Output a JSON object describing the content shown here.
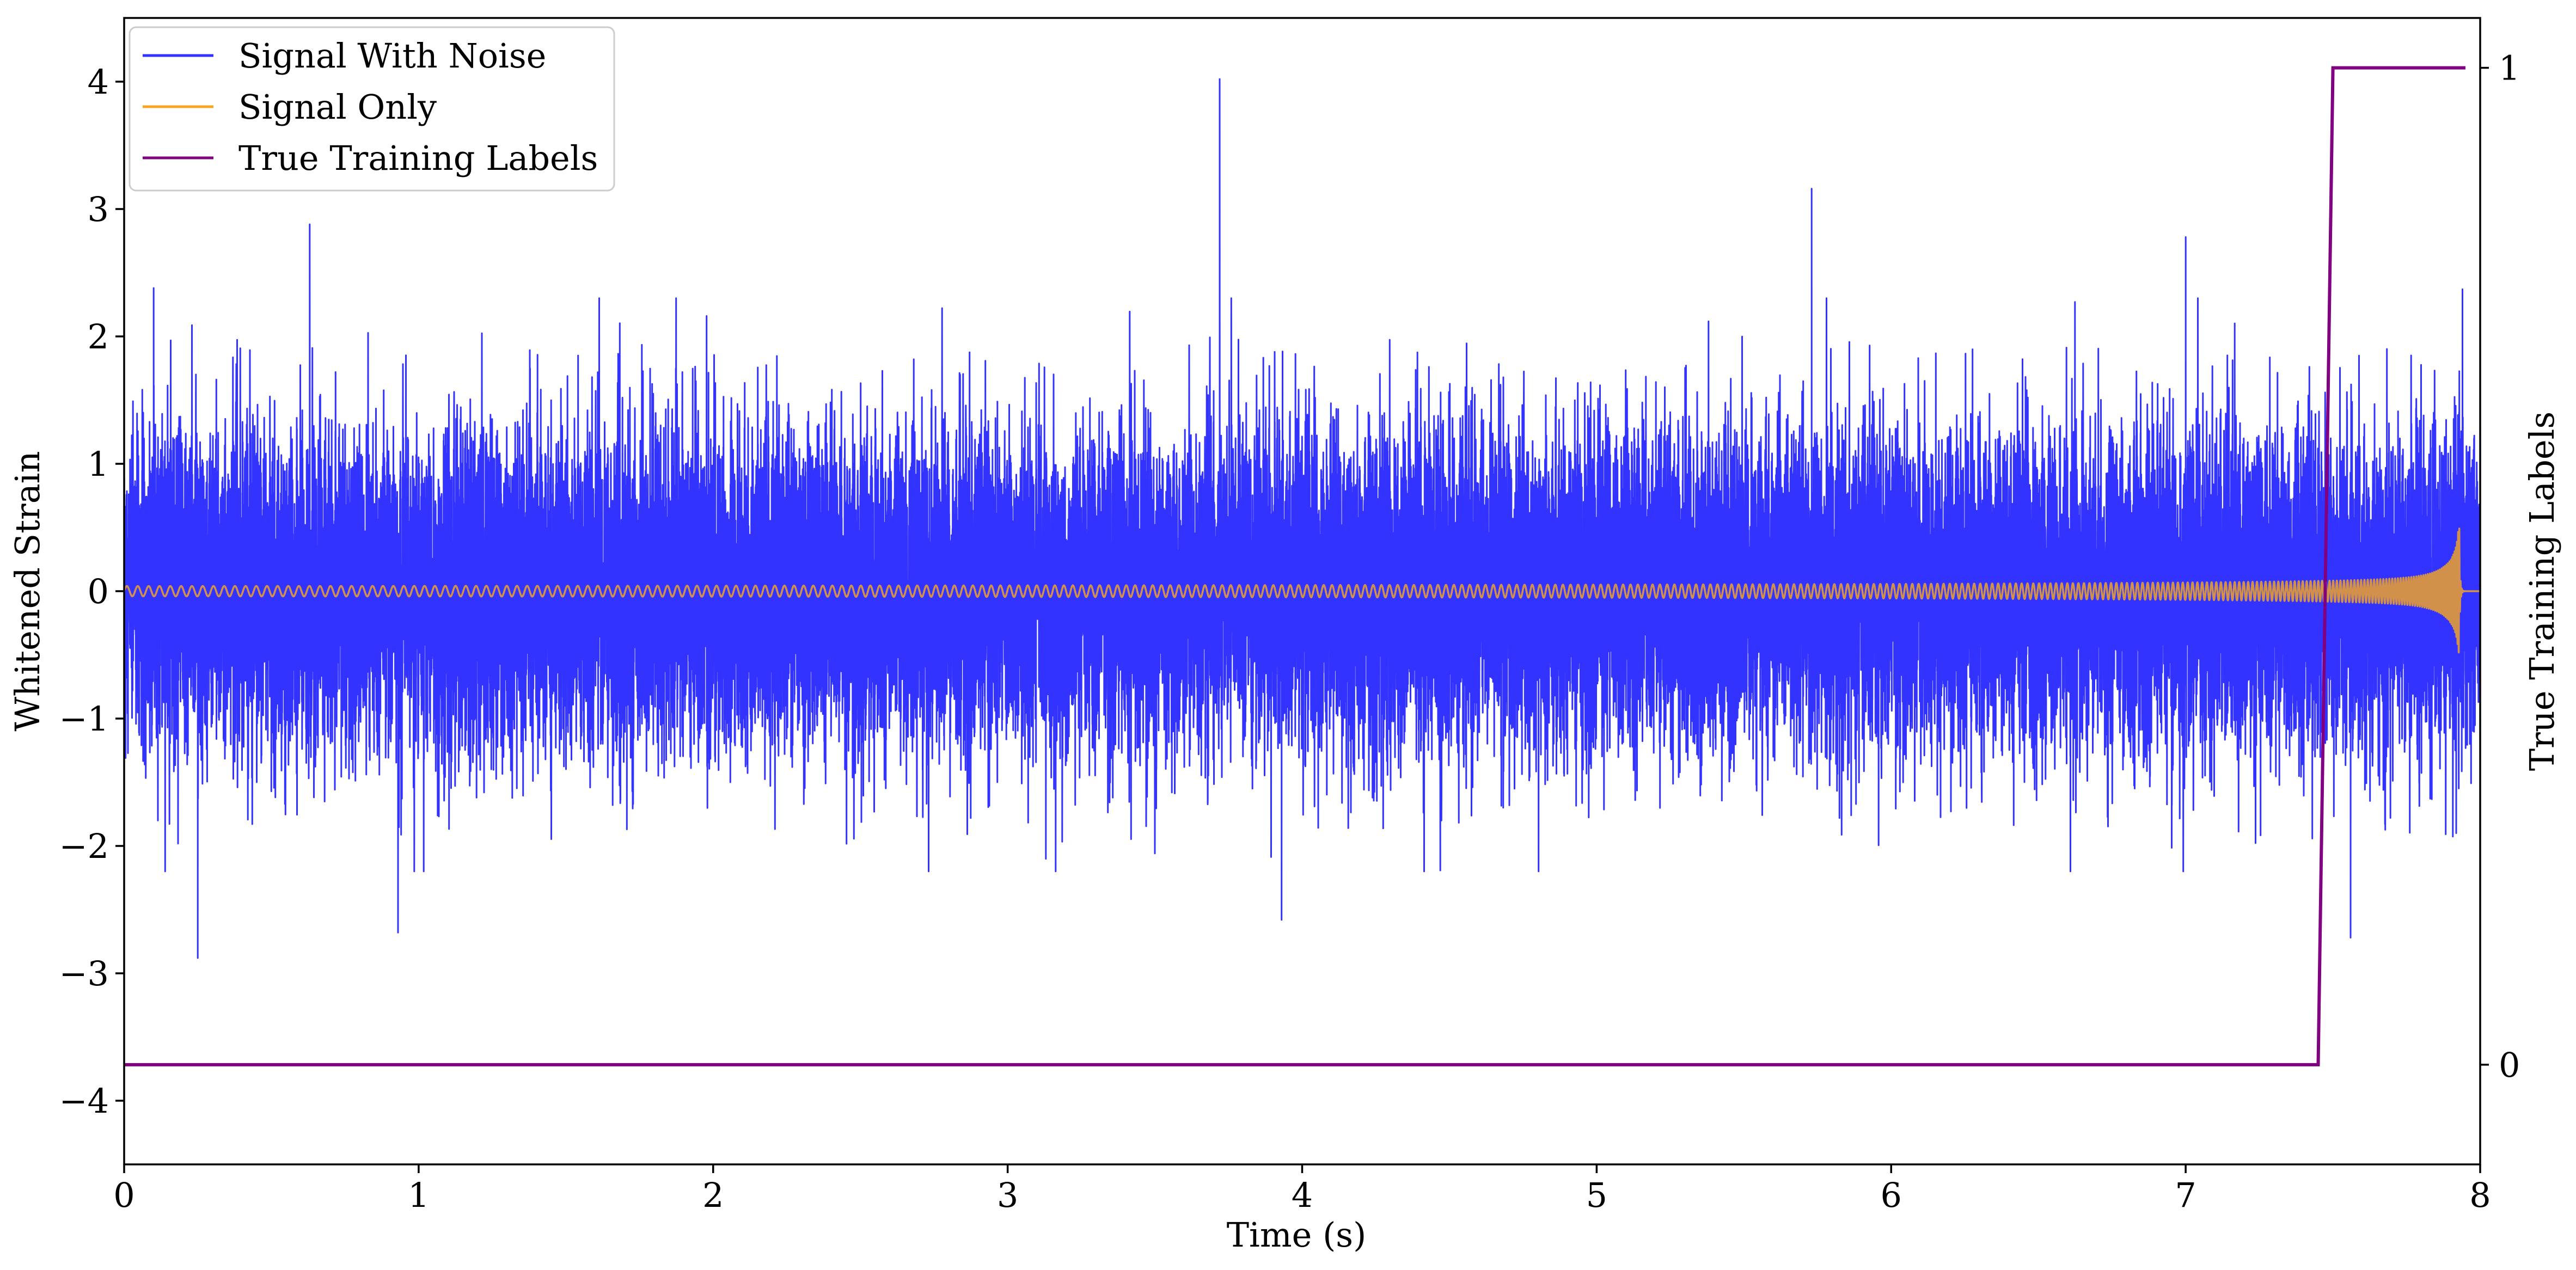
{
  "chart_data": {
    "type": "line",
    "title": "",
    "xlabel": "Time (s)",
    "ylabel": "Whitened Strain",
    "y2label": "True Training Labels",
    "xlim": [
      0,
      8
    ],
    "ylim": [
      -4.5,
      4.5
    ],
    "y2lim": [
      -0.1,
      1.05
    ],
    "xticks": [
      "0",
      "1",
      "2",
      "3",
      "4",
      "5",
      "6",
      "7",
      "8"
    ],
    "yticks": [
      "4",
      "3",
      "2",
      "1",
      "0",
      "−1",
      "−2",
      "−3",
      "−4"
    ],
    "y2ticks": [
      "1",
      "0"
    ],
    "grid": false,
    "legend_position": "top-left",
    "series": [
      {
        "name": "Signal With Noise",
        "axis": "left",
        "color": "#3333ff",
        "description_kind": "noise",
        "amplitude_std": 0.62,
        "sample_rate_hz": 2048,
        "notable_peaks": [
          {
            "x": 0.63,
            "y": 2.88
          },
          {
            "x": 0.1,
            "y": 2.38
          },
          {
            "x": 3.72,
            "y": 4.02
          },
          {
            "x": 5.73,
            "y": 3.16
          },
          {
            "x": 7.0,
            "y": 2.78
          },
          {
            "x": 0.25,
            "y": -2.88
          },
          {
            "x": 0.93,
            "y": -2.68
          },
          {
            "x": 3.93,
            "y": -2.58
          },
          {
            "x": 7.56,
            "y": -2.72
          },
          {
            "x": 7.94,
            "y": 2.37
          }
        ]
      },
      {
        "name": "Signal Only",
        "axis": "left",
        "color": "#f5a623",
        "description_kind": "chirp",
        "start_amplitude": 0.04,
        "peak_amplitude": 0.72,
        "merger_time": 7.93,
        "start_frequency_hz": 27,
        "end_frequency_hz": 250
      },
      {
        "name": "True Training Labels",
        "axis": "right",
        "color": "#800080",
        "x": [
          0,
          7.45,
          7.5,
          7.95
        ],
        "y": [
          0,
          0,
          1,
          1
        ]
      }
    ]
  }
}
